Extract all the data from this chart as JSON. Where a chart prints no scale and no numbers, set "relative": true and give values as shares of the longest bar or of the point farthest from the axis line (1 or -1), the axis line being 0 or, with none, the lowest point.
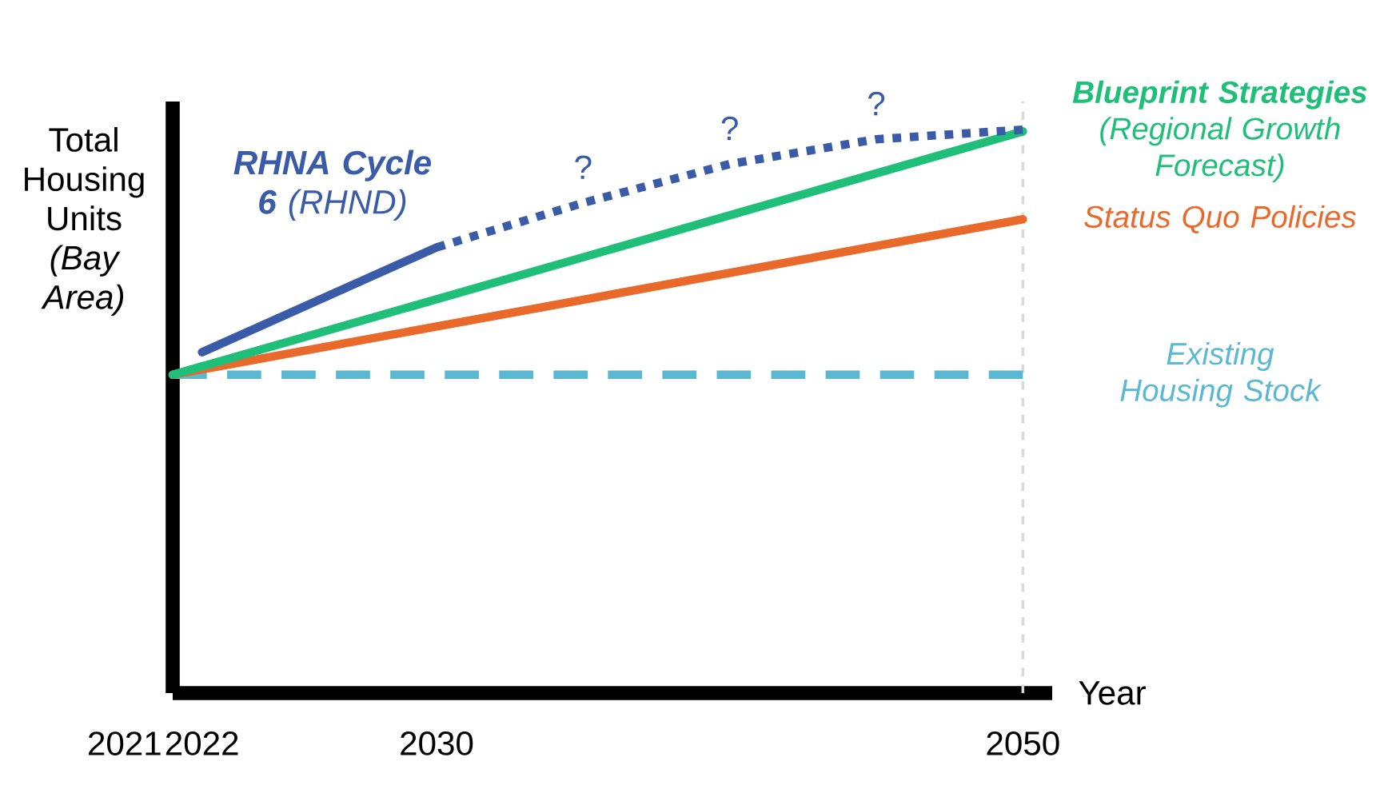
{
  "chart_data": {
    "type": "line",
    "relative": true,
    "xlabel": "Year",
    "ylabel": "Total Housing Units *(Bay Area)*",
    "x": [
      2021,
      2050
    ],
    "xlim": [
      2021,
      2051
    ],
    "legend": "right",
    "xticks": [
      2022,
      2030,
      2050
    ],
    "series": [
      {
        "name": "Existing Housing Stock",
        "color": "#5ab8d2",
        "line_style": "dashed",
        "values": [
          0.565,
          0.565
        ]
      },
      {
        "name": "Status Quo Policies",
        "color": "#e8692a",
        "line_style": "solid",
        "values": [
          0.565,
          0.841
        ]
      },
      {
        "name": "**Blueprint Strategies** (Regional Growth Forecast)",
        "color": "#1fbf7a",
        "line_style": "solid",
        "values": [
          0.565,
          0.997
        ]
      },
      {
        "name": "**RHNA Cycle 6** (RHND)",
        "color": "#3a5ca8",
        "line_style": "solid",
        "x": [
          2022,
          2030
        ],
        "values": [
          0.605,
          0.791
        ]
      },
      {
        "color": "#3a5ca8",
        "line_style": "dotted",
        "x": [
          2030,
          2035,
          2040,
          2045,
          2050
        ],
        "values": [
          0.791,
          0.87,
          0.939,
          0.983,
          1.0
        ]
      }
    ],
    "annotations": [
      "2021",
      {
        "text": "?",
        "x": 2035,
        "y": 0.87
      },
      {
        "text": "?",
        "x": 2040,
        "y": 0.939
      },
      {
        "text": "?",
        "x": 2045,
        "y": 0.983
      }
    ],
    "ref_lines": [
      {
        "axis": "x",
        "value": 2050,
        "color": "#d9d9d9",
        "line_style": "dotted"
      }
    ]
  }
}
